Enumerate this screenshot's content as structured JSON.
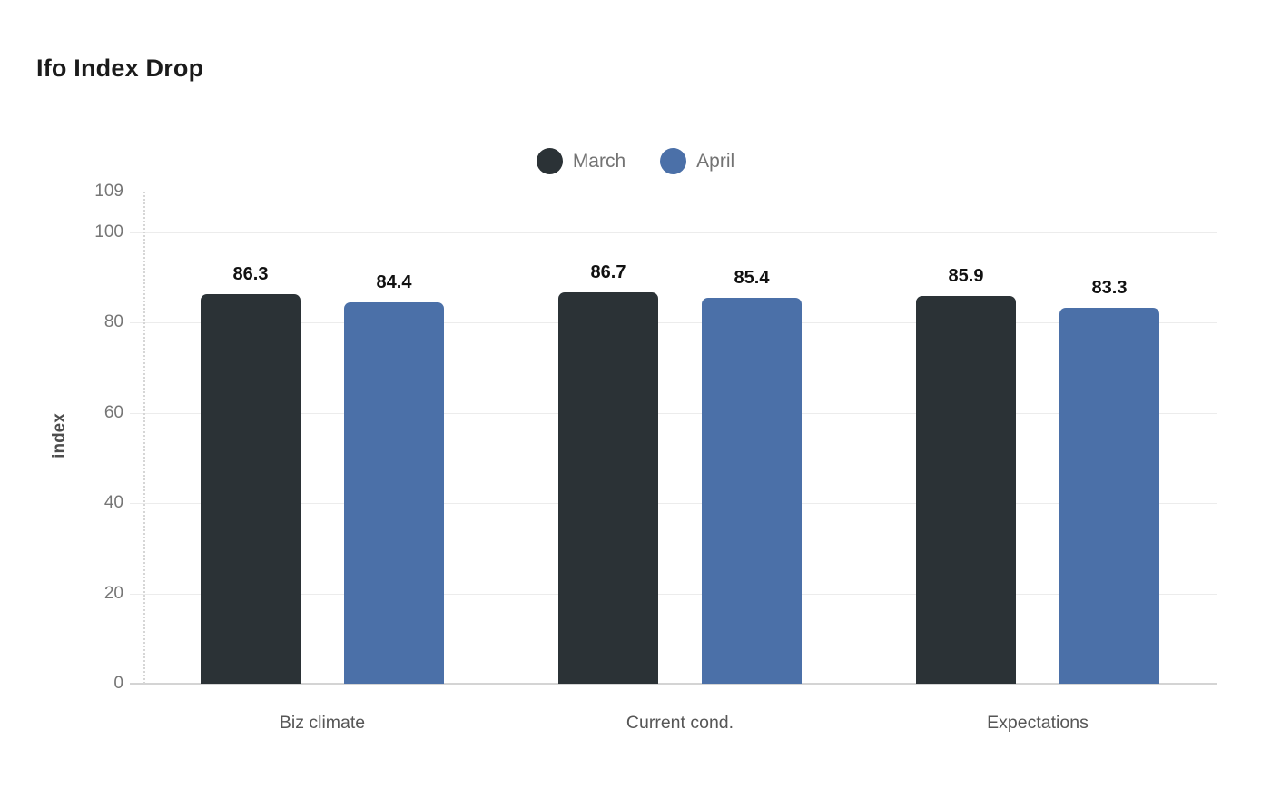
{
  "chart_data": {
    "type": "bar",
    "title": "Ifo Index Drop",
    "categories": [
      "Biz climate",
      "Current cond.",
      "Expectations"
    ],
    "series": [
      {
        "name": "March",
        "color": "#2b3236",
        "values": [
          86.3,
          86.7,
          85.9
        ]
      },
      {
        "name": "April",
        "color": "#4b70a8",
        "values": [
          84.4,
          85.4,
          83.3
        ]
      }
    ],
    "xlabel": "",
    "ylabel": "index",
    "ylim": [
      0,
      109
    ],
    "yticks": [
      0,
      20,
      40,
      60,
      80,
      100,
      109
    ],
    "grid": true,
    "grid_color": "#ececec",
    "axis_line_color": "#d4d4d4",
    "tick_label_color": "#767676",
    "category_label_color": "#565656",
    "value_label_color": "#111111",
    "legend_text_color": "#737373",
    "legend_position": "top-center",
    "value_labels": true,
    "value_label_format": "one-decimal"
  }
}
